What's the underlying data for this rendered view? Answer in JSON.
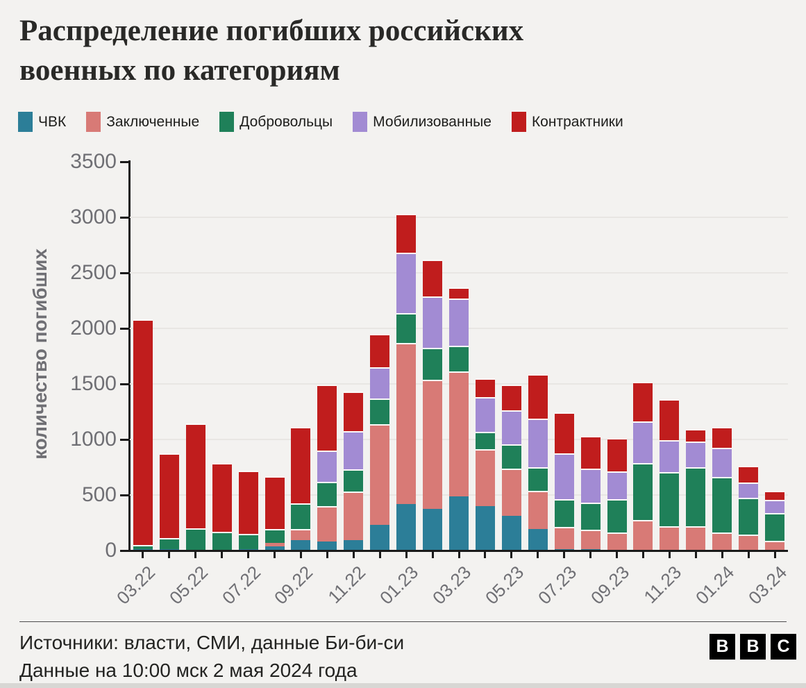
{
  "header": {
    "title_line1": "Распределение погибших российских",
    "title_line2": "военных по категориям"
  },
  "chart_data": {
    "type": "bar",
    "stacked": true,
    "title": "Распределение погибших российских военных по категориям",
    "xlabel": "",
    "ylabel": "количество погибших",
    "ylim": [
      0,
      3500
    ],
    "yticks": [
      0,
      500,
      1000,
      1500,
      2000,
      2500,
      3000,
      3500
    ],
    "grid": "horizontal",
    "legend_position": "top",
    "x_label_step": 2,
    "categories": [
      "03.22",
      "04.22",
      "05.22",
      "06.22",
      "07.22",
      "08.22",
      "09.22",
      "10.22",
      "11.22",
      "12.22",
      "01.23",
      "02.23",
      "03.23",
      "04.23",
      "05.23",
      "06.23",
      "07.23",
      "08.23",
      "09.23",
      "10.23",
      "11.23",
      "12.23",
      "01.24",
      "02.24",
      "03.24"
    ],
    "series": [
      {
        "name": "ЧВК",
        "color": "#2c7e98",
        "values": [
          15,
          10,
          5,
          5,
          10,
          40,
          95,
          80,
          95,
          230,
          420,
          375,
          490,
          400,
          310,
          195,
          15,
          10,
          5,
          5,
          5,
          5,
          5,
          5,
          5
        ]
      },
      {
        "name": "Заключенные",
        "color": "#d87a76",
        "values": [
          0,
          0,
          0,
          0,
          0,
          30,
          100,
          320,
          435,
          910,
          1450,
          1160,
          1120,
          515,
          430,
          345,
          200,
          180,
          155,
          270,
          215,
          215,
          160,
          140,
          85
        ]
      },
      {
        "name": "Добровольцы",
        "color": "#1f8059",
        "values": [
          35,
          100,
          195,
          165,
          140,
          125,
          230,
          220,
          200,
          230,
          270,
          290,
          235,
          155,
          215,
          210,
          250,
          240,
          300,
          510,
          485,
          530,
          500,
          330,
          245
        ]
      },
      {
        "name": "Мобилизованные",
        "color": "#a28bd3",
        "values": [
          0,
          0,
          0,
          0,
          0,
          0,
          0,
          280,
          345,
          280,
          540,
          460,
          425,
          310,
          310,
          440,
          410,
          310,
          255,
          375,
          290,
          230,
          260,
          140,
          120
        ]
      },
      {
        "name": "Контрактники",
        "color": "#c01d1d",
        "values": [
          2030,
          765,
          945,
          615,
          570,
          475,
          685,
          595,
          355,
          300,
          350,
          335,
          100,
          170,
          230,
          400,
          370,
          290,
          300,
          360,
          370,
          115,
          190,
          150,
          85
        ]
      }
    ]
  },
  "footer": {
    "line1": "Источники: власти, СМИ, данные Би-би-си",
    "line2": "Данные на 10:00 мск 2 мая 2024 года"
  },
  "logo": {
    "letters": [
      "B",
      "B",
      "C"
    ]
  },
  "colors": {
    "background": "#f3f2f0",
    "axis": "#1a1a1a",
    "grid": "#e8e6e3",
    "muted_text": "#6f6f74",
    "text": "#232321",
    "logo_bg": "#000000",
    "logo_text": "#ffffff"
  }
}
